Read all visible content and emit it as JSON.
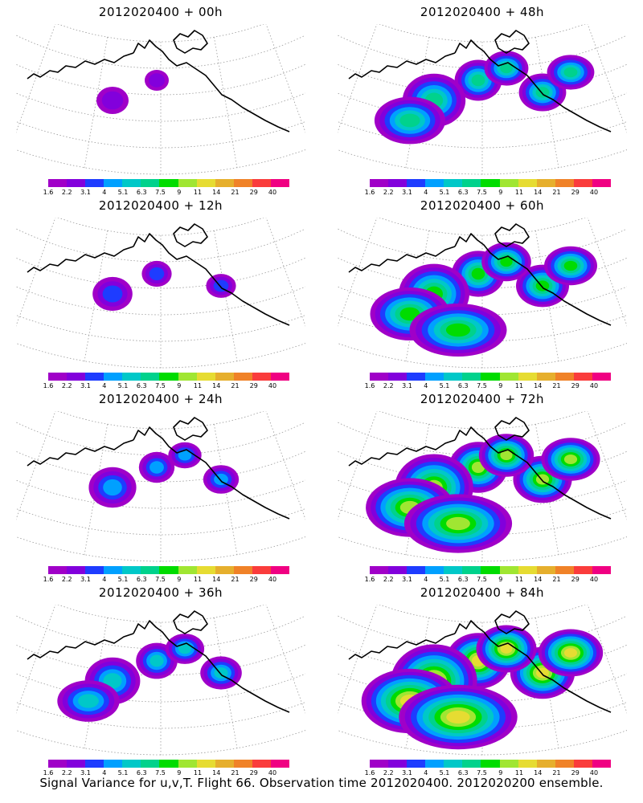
{
  "panels": [
    {
      "title": "2012020400 + 00h",
      "level": 0
    },
    {
      "title": "2012020400 + 48h",
      "level": 4
    },
    {
      "title": "2012020400 + 12h",
      "level": 1
    },
    {
      "title": "2012020400 + 60h",
      "level": 5
    },
    {
      "title": "2012020400 + 24h",
      "level": 2
    },
    {
      "title": "2012020400 + 72h",
      "level": 6
    },
    {
      "title": "2012020400 + 36h",
      "level": 3
    },
    {
      "title": "2012020400 + 84h",
      "level": 7
    }
  ],
  "colorbar": {
    "labels": [
      "1.6",
      "2.2",
      "3.1",
      "4",
      "5.1",
      "6.3",
      "7.5",
      "9",
      "11",
      "14",
      "21",
      "29",
      "40"
    ],
    "colors": [
      "#a000c8",
      "#8200dc",
      "#1e3cff",
      "#00a0ff",
      "#00c8c8",
      "#00d28c",
      "#00dc00",
      "#a0e632",
      "#e6dc32",
      "#e6af2d",
      "#f08228",
      "#fa3c3c",
      "#f00082"
    ]
  },
  "caption": "Signal Variance for u,v,T. Flight 66. Observation time 2012020400. 2012020200 ensemble."
}
